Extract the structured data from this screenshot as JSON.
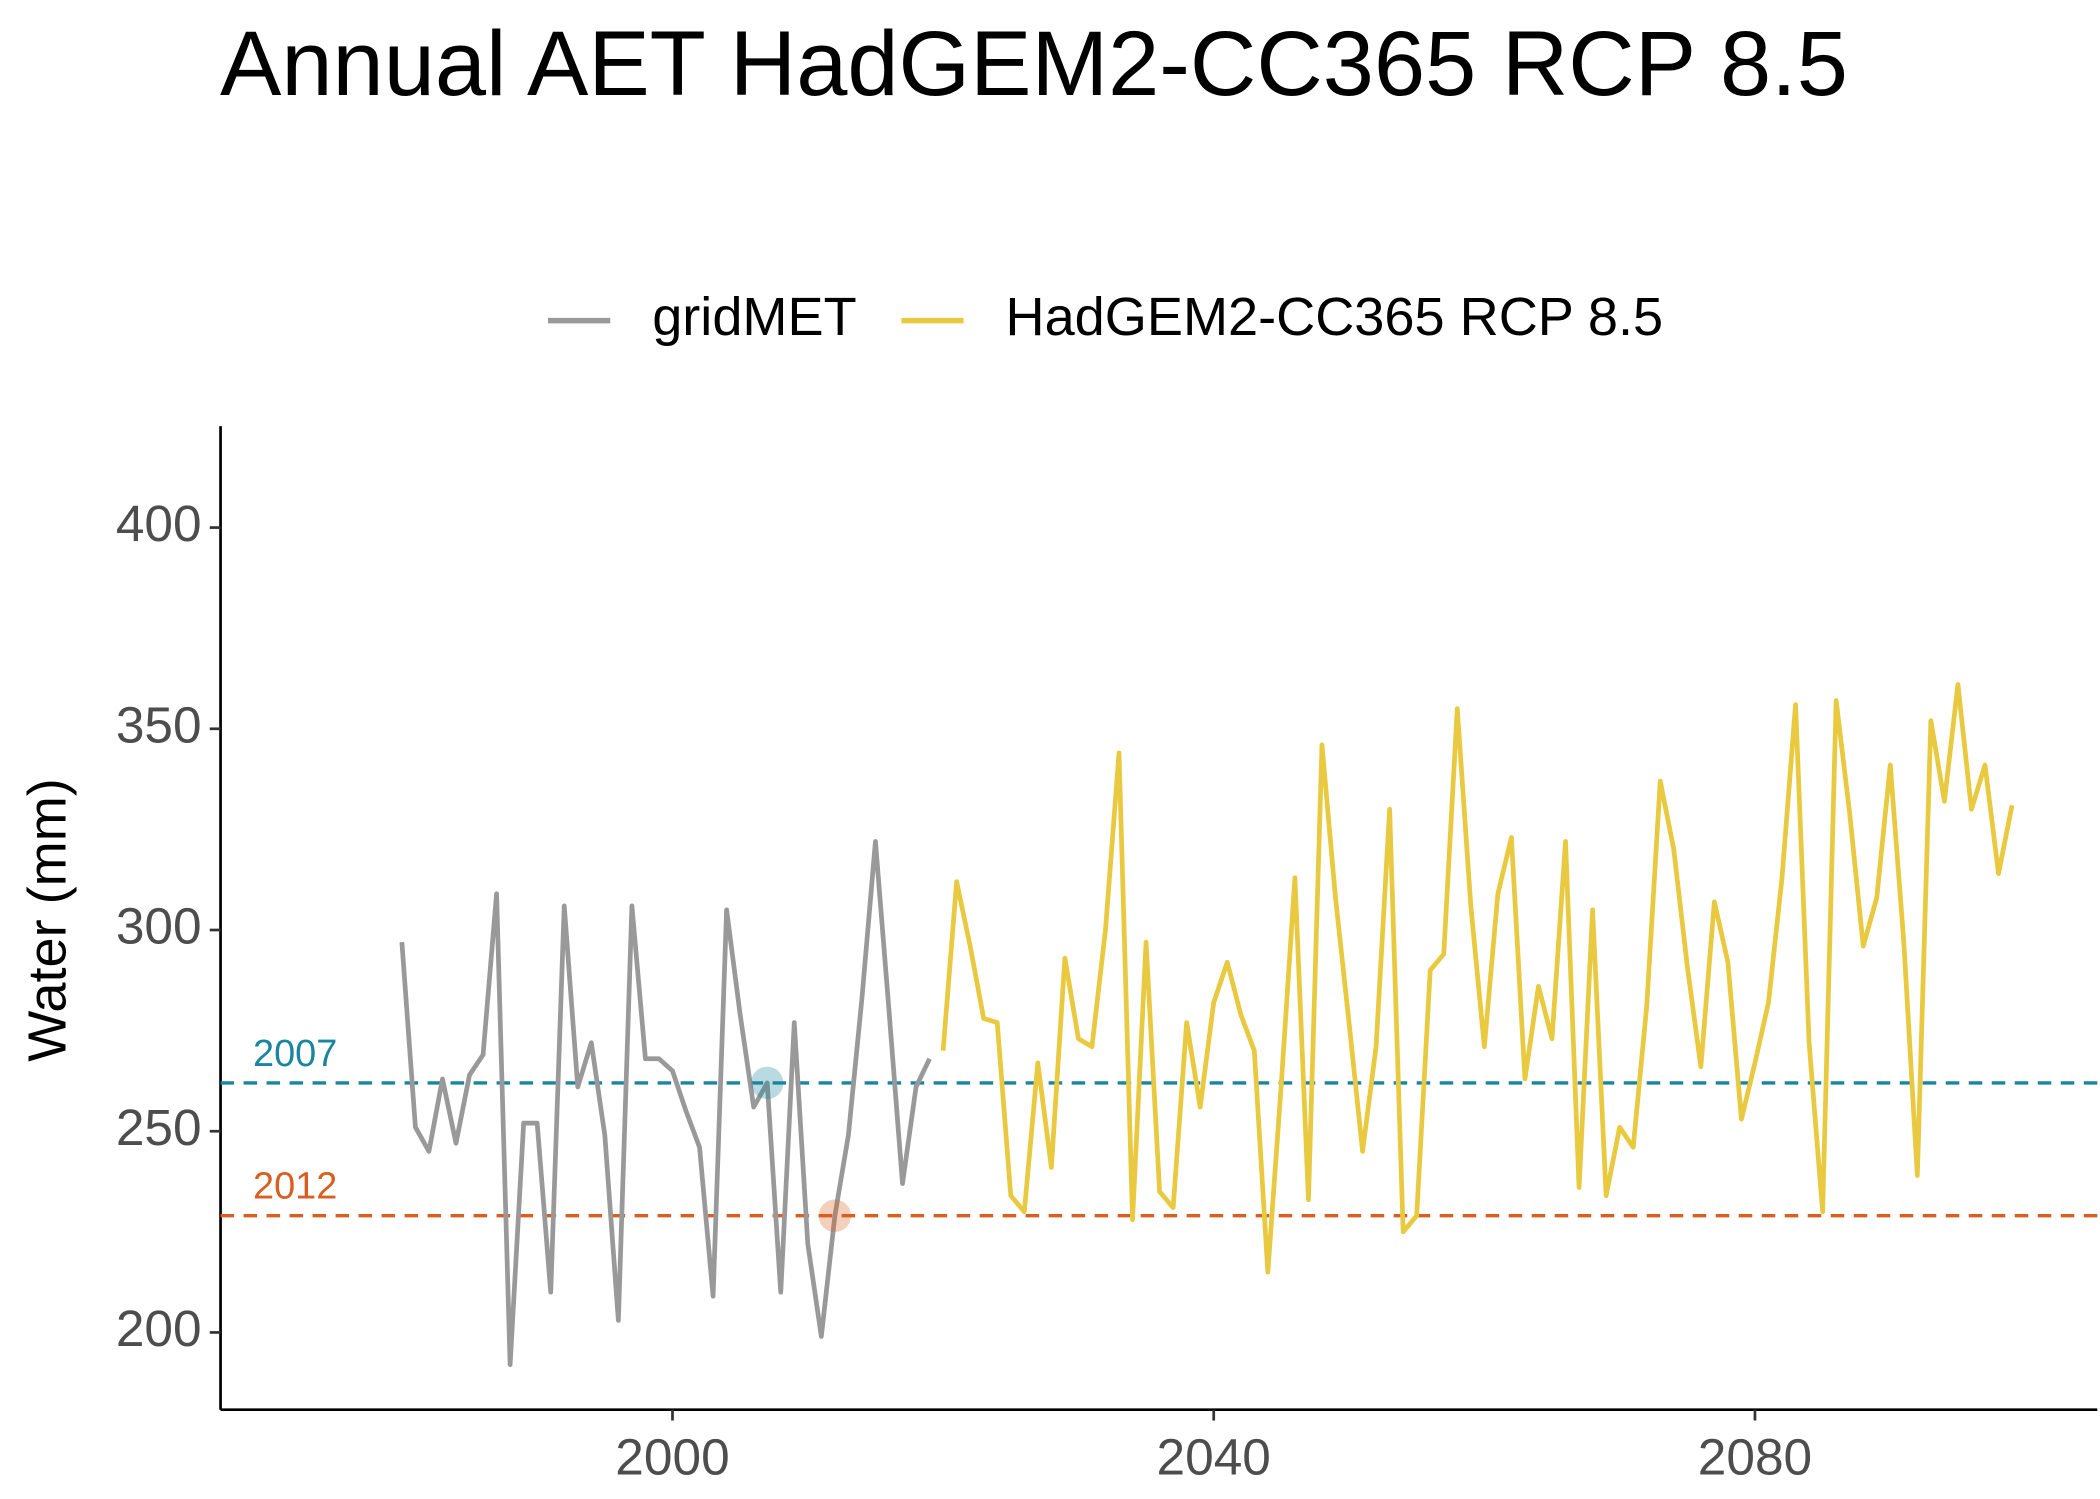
{
  "chart_data": {
    "type": "line",
    "title": "Annual AET HadGEM2-CC365 RCP 8.5",
    "y_label": "Water (mm)",
    "xlim": [
      1966.6,
      2105.3
    ],
    "xticks": [
      2000,
      2040,
      2080
    ],
    "ylim": [
      180.8,
      425.2
    ],
    "yticks": [
      200,
      250,
      300,
      350,
      400
    ],
    "legend_position": "top",
    "series": [
      {
        "name": "gridMET",
        "color": "#999999",
        "x": [
          1980,
          1981,
          1982,
          1983,
          1984,
          1985,
          1986,
          1987,
          1988,
          1989,
          1990,
          1991,
          1992,
          1993,
          1994,
          1995,
          1996,
          1997,
          1998,
          1999,
          2000,
          2001,
          2002,
          2003,
          2004,
          2005,
          2006,
          2007,
          2008,
          2009,
          2010,
          2011,
          2012,
          2013,
          2014,
          2015,
          2016,
          2017,
          2018,
          2019
        ],
        "values": [
          297,
          251,
          245,
          263,
          247,
          264,
          269,
          309,
          192,
          252,
          252,
          210,
          306,
          261,
          272,
          249,
          203,
          306,
          268,
          268,
          265,
          255,
          246,
          209,
          305,
          279,
          256,
          262,
          210,
          277,
          222,
          199,
          229,
          249,
          283,
          322,
          280,
          237,
          261,
          268
        ]
      },
      {
        "name": "HadGEM2-CC365 RCP 8.5",
        "color": "#e9c93f",
        "x": [
          2020,
          2021,
          2022,
          2023,
          2024,
          2025,
          2026,
          2027,
          2028,
          2029,
          2030,
          2031,
          2032,
          2033,
          2034,
          2035,
          2036,
          2037,
          2038,
          2039,
          2040,
          2041,
          2042,
          2043,
          2044,
          2045,
          2046,
          2047,
          2048,
          2049,
          2050,
          2051,
          2052,
          2053,
          2054,
          2055,
          2056,
          2057,
          2058,
          2059,
          2060,
          2061,
          2062,
          2063,
          2064,
          2065,
          2066,
          2067,
          2068,
          2069,
          2070,
          2071,
          2072,
          2073,
          2074,
          2075,
          2076,
          2077,
          2078,
          2079,
          2080,
          2081,
          2082,
          2083,
          2084,
          2085,
          2086,
          2087,
          2088,
          2089,
          2090,
          2091,
          2092,
          2093,
          2094,
          2095,
          2096,
          2097,
          2098,
          2099
        ],
        "values": [
          270,
          312,
          296,
          278,
          277,
          234,
          230,
          267,
          241,
          293,
          273,
          271,
          300,
          344,
          228,
          297,
          235,
          231,
          277,
          256,
          282,
          292,
          279,
          270,
          215,
          262,
          313,
          233,
          346,
          308,
          277,
          245,
          271,
          330,
          225,
          229,
          290,
          294,
          355,
          306,
          271,
          309,
          323,
          263,
          286,
          273,
          322,
          236,
          305,
          234,
          251,
          246,
          281,
          337,
          320,
          291,
          266,
          307,
          292,
          253,
          267,
          282,
          313,
          356,
          272,
          230,
          357,
          329,
          296,
          308,
          341,
          297,
          239,
          352,
          332,
          361,
          330,
          341,
          314,
          331
        ]
      }
    ],
    "reference_lines": [
      {
        "label": "2007",
        "x": 2007,
        "value": 262,
        "color": "#1a85a0"
      },
      {
        "label": "2012",
        "x": 2012,
        "value": 229,
        "color": "#d95f21"
      }
    ]
  }
}
